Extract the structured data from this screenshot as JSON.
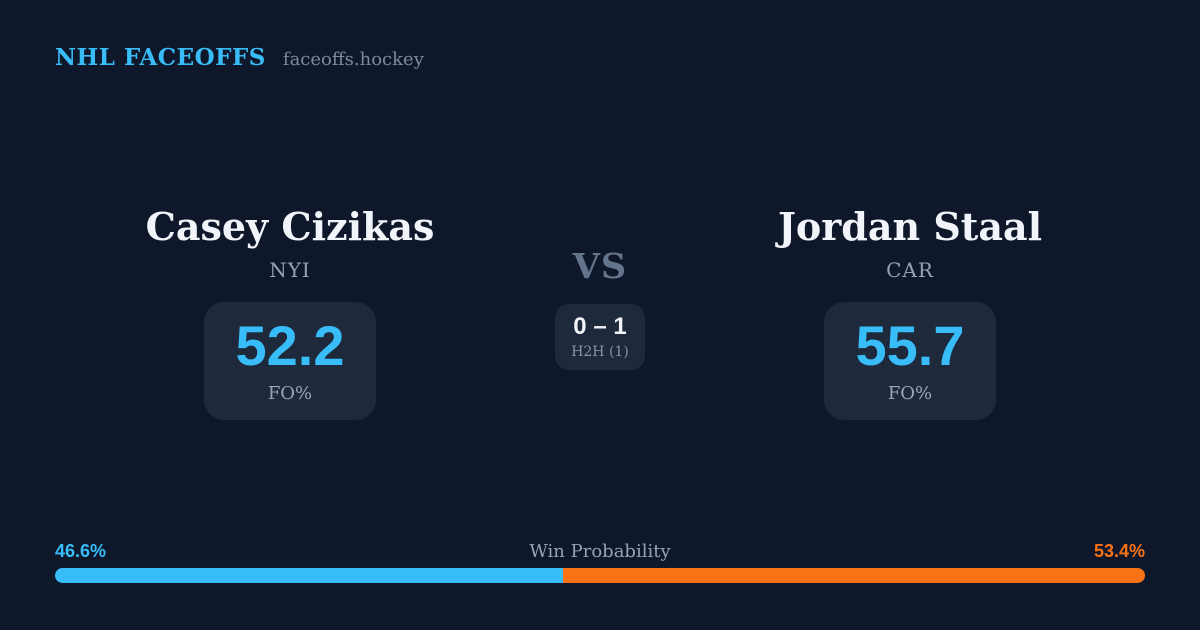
{
  "header": {
    "brand": "NHL FACEOFFS",
    "site": "faceoffs.hockey"
  },
  "players": {
    "left": {
      "name": "Casey Cizikas",
      "team": "NYI",
      "fo_value": "52.2",
      "fo_label": "FO%"
    },
    "right": {
      "name": "Jordan Staal",
      "team": "CAR",
      "fo_value": "55.7",
      "fo_label": "FO%"
    }
  },
  "center": {
    "vs_label": "VS",
    "h2h_score": "0 – 1",
    "h2h_label": "H2H (1)"
  },
  "win_probability": {
    "label": "Win Probability",
    "left_text": "46.6%",
    "right_text": "53.4%",
    "left_value": 46.6,
    "right_value": 53.4
  },
  "colors": {
    "background": "#0f172a",
    "card": "#1e293b",
    "accent_blue": "#38bdf8",
    "accent_orange": "#f97316"
  }
}
